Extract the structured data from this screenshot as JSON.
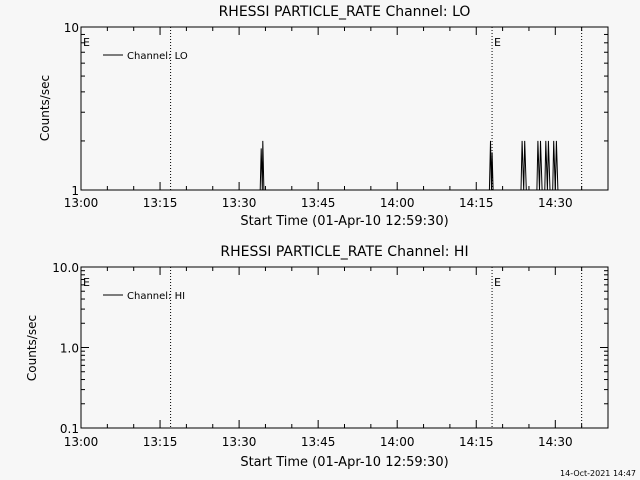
{
  "chart_data": [
    {
      "type": "line",
      "title": "RHESSI PARTICLE_RATE Channel: LO",
      "xlabel": "Start Time (01-Apr-10 12:59:30)",
      "ylabel": "Counts/sec",
      "x_tick_labels": [
        "13:00",
        "13:15",
        "13:30",
        "13:45",
        "14:00",
        "14:15",
        "14:30"
      ],
      "x_range": [
        "13:00",
        "14:40"
      ],
      "y_scale": "log",
      "y_tick_labels": [
        "1",
        "10"
      ],
      "ylim": [
        1,
        10
      ],
      "legend": {
        "placement": "top-left",
        "entries": [
          "Channel: LO"
        ]
      },
      "markers": [
        {
          "label": "E",
          "time": "13:00"
        },
        {
          "label": "",
          "time": "13:17"
        },
        {
          "label": "E",
          "time": "14:18"
        },
        {
          "label": "",
          "time": "14:35"
        }
      ],
      "series": [
        {
          "name": "Channel: LO",
          "points": [
            {
              "x": "13:34.0",
              "y": 1
            },
            {
              "x": "13:34.2",
              "y": 1.8
            },
            {
              "x": "13:34.4",
              "y": 1
            },
            {
              "x": "13:34.5",
              "y": 2
            },
            {
              "x": "13:34.7",
              "y": 1
            },
            {
              "x": "14:17.5",
              "y": 1
            },
            {
              "x": "14:17.7",
              "y": 2
            },
            {
              "x": "14:17.9",
              "y": 1
            },
            {
              "x": "14:18.0",
              "y": 1.7
            },
            {
              "x": "14:18.2",
              "y": 1
            },
            {
              "x": "14:23.5",
              "y": 1
            },
            {
              "x": "14:23.7",
              "y": 2
            },
            {
              "x": "14:24.0",
              "y": 1
            },
            {
              "x": "14:24.2",
              "y": 2
            },
            {
              "x": "14:24.5",
              "y": 1
            },
            {
              "x": "14:26.5",
              "y": 1
            },
            {
              "x": "14:26.7",
              "y": 2
            },
            {
              "x": "14:27.0",
              "y": 1
            },
            {
              "x": "14:27.2",
              "y": 2
            },
            {
              "x": "14:27.5",
              "y": 1
            },
            {
              "x": "14:28.0",
              "y": 1
            },
            {
              "x": "14:28.2",
              "y": 2
            },
            {
              "x": "14:28.5",
              "y": 1
            },
            {
              "x": "14:28.7",
              "y": 2
            },
            {
              "x": "14:29.0",
              "y": 1
            },
            {
              "x": "14:29.5",
              "y": 1
            },
            {
              "x": "14:29.7",
              "y": 2
            },
            {
              "x": "14:30.0",
              "y": 1
            },
            {
              "x": "14:30.2",
              "y": 2
            },
            {
              "x": "14:30.5",
              "y": 1
            }
          ]
        }
      ]
    },
    {
      "type": "line",
      "title": "RHESSI PARTICLE_RATE Channel: HI",
      "xlabel": "Start Time (01-Apr-10 12:59:30)",
      "ylabel": "Counts/sec",
      "x_tick_labels": [
        "13:00",
        "13:15",
        "13:30",
        "13:45",
        "14:00",
        "14:15",
        "14:30"
      ],
      "x_range": [
        "13:00",
        "14:40"
      ],
      "y_scale": "log",
      "y_tick_labels": [
        "0.1",
        "1.0",
        "10.0"
      ],
      "ylim": [
        0.1,
        10
      ],
      "legend": {
        "placement": "top-left",
        "entries": [
          "Channel: HI"
        ]
      },
      "markers": [
        {
          "label": "E",
          "time": "13:00"
        },
        {
          "label": "",
          "time": "13:17"
        },
        {
          "label": "E",
          "time": "14:18"
        },
        {
          "label": "",
          "time": "14:35"
        }
      ],
      "series": [
        {
          "name": "Channel: HI",
          "points": []
        }
      ]
    }
  ],
  "footer": {
    "timestamp": "14-Oct-2021 14:47"
  }
}
